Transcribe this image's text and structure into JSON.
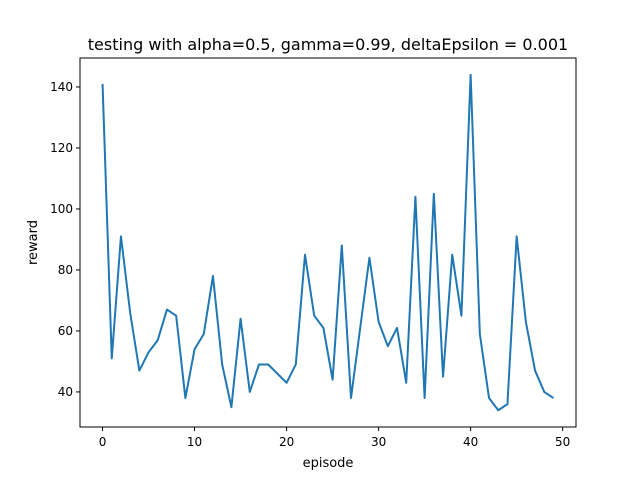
{
  "chart_data": {
    "type": "line",
    "title": "testing with alpha=0.5, gamma=0.99, deltaEpsilon = 0.001",
    "xlabel": "episode",
    "ylabel": "reward",
    "xlim": [
      -2.45,
      51.45
    ],
    "ylim": [
      28.5,
      149.5
    ],
    "xticks": [
      0,
      10,
      20,
      30,
      40,
      50
    ],
    "yticks": [
      40,
      60,
      80,
      100,
      120,
      140
    ],
    "grid": false,
    "series": [
      {
        "color": "#1f77b4",
        "x": [
          0,
          1,
          2,
          3,
          4,
          5,
          6,
          7,
          8,
          9,
          10,
          11,
          12,
          13,
          14,
          15,
          16,
          17,
          18,
          19,
          20,
          21,
          22,
          23,
          24,
          25,
          26,
          27,
          28,
          29,
          30,
          31,
          32,
          33,
          34,
          35,
          36,
          37,
          38,
          39,
          40,
          41,
          42,
          43,
          44,
          45,
          46,
          47,
          48,
          49
        ],
        "y": [
          141,
          51,
          91,
          66,
          47,
          53,
          57,
          67,
          65,
          38,
          54,
          59,
          78,
          49,
          35,
          64,
          40,
          49,
          49,
          46,
          43,
          49,
          85,
          65,
          61,
          44,
          88,
          38,
          61,
          84,
          63,
          55,
          61,
          43,
          104,
          38,
          105,
          45,
          85,
          65,
          144,
          59,
          38,
          34,
          36,
          91,
          63,
          47,
          40,
          38
        ]
      }
    ]
  }
}
